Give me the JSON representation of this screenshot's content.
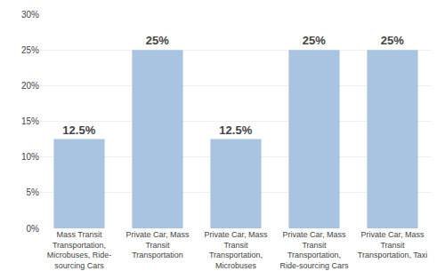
{
  "chart_data": {
    "type": "bar",
    "categories": [
      "Mass Transit\nTransportation,\nMicrobuses, Ride-\nsourcing Cars",
      "Private Car, Mass\nTransit\nTransportation",
      "Private Car, Mass\nTransit\nTransportation,\nMicrobuses",
      "Private Car, Mass\nTransit\nTransportation,\nRide-sourcing Cars",
      "Private Car, Mass\nTransit\nTransportation, Taxi"
    ],
    "values": [
      12.5,
      25.0,
      12.5,
      25.0,
      25.0
    ],
    "data_labels": true,
    "value_labels": [
      "12.5%",
      "25%",
      "12.5%",
      "25%",
      "25%"
    ],
    "color": "#a8c4e0",
    "ylim": [
      0,
      30
    ],
    "yticks": [
      {
        "value": 0,
        "label": "0%"
      },
      {
        "value": 5,
        "label": "5%"
      },
      {
        "value": 10,
        "label": "10%"
      },
      {
        "value": 15,
        "label": "15%"
      },
      {
        "value": 20,
        "label": "20%"
      },
      {
        "value": 25,
        "label": "25%"
      },
      {
        "value": 30,
        "label": "30%"
      }
    ],
    "grid": true
  }
}
